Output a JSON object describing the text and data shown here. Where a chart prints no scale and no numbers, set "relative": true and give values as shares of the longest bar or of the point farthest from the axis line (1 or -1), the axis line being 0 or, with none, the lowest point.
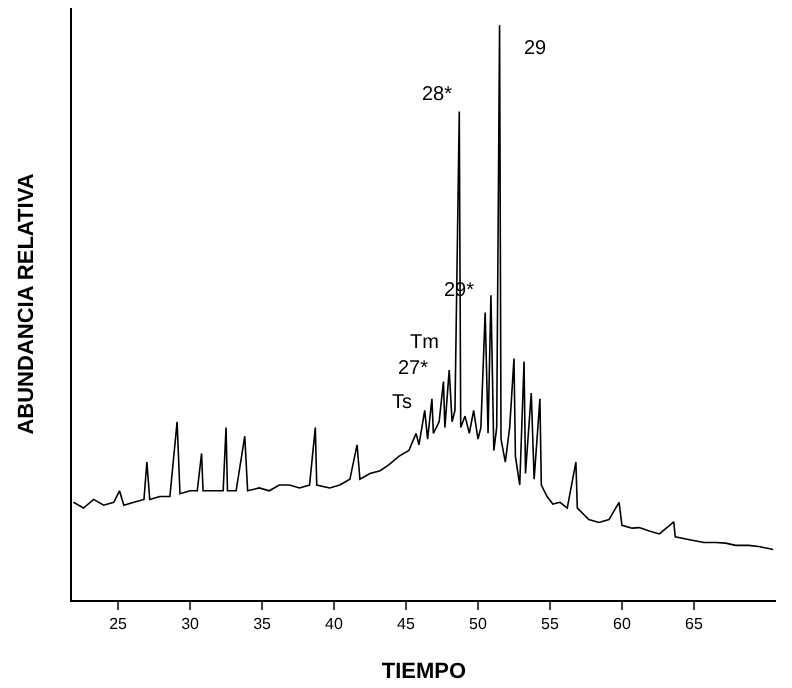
{
  "chart_data": {
    "type": "line",
    "xlabel": "TIEMPO",
    "ylabel": "ABUNDANCIA RELATIVA",
    "relative": true,
    "marker": "none",
    "line_style": "solid",
    "xlim": [
      21.8,
      70.7
    ],
    "xticks": [
      25,
      30,
      35,
      40,
      45,
      50,
      55,
      60,
      65
    ],
    "x": [
      21.9,
      22.6,
      23.3,
      24.0,
      24.7,
      25.1,
      25.4,
      26.1,
      26.8,
      27.0,
      27.2,
      27.9,
      28.6,
      29.1,
      29.3,
      30.0,
      30.5,
      30.8,
      30.9,
      31.6,
      32.3,
      32.5,
      32.6,
      33.2,
      33.8,
      34.0,
      34.8,
      35.5,
      36.2,
      36.9,
      37.6,
      38.3,
      38.7,
      38.8,
      39.7,
      40.4,
      41.1,
      41.6,
      41.8,
      42.5,
      43.2,
      43.8,
      44.5,
      45.2,
      45.7,
      45.9,
      46.3,
      46.5,
      46.8,
      46.9,
      47.3,
      47.6,
      47.7,
      48.0,
      48.2,
      48.4,
      48.7,
      48.8,
      49.1,
      49.4,
      49.7,
      50.0,
      50.2,
      50.5,
      50.7,
      50.9,
      51.1,
      51.3,
      51.5,
      51.6,
      51.9,
      52.2,
      52.5,
      52.6,
      52.9,
      53.2,
      53.3,
      53.7,
      53.9,
      54.3,
      54.4,
      54.8,
      55.2,
      55.7,
      56.2,
      56.8,
      56.9,
      57.7,
      58.4,
      59.1,
      59.8,
      60.0,
      60.7,
      61.2,
      61.9,
      62.6,
      63.6,
      63.7,
      64.7,
      65.7,
      66.5,
      67.2,
      67.9,
      68.8,
      69.5,
      70.1,
      70.5
    ],
    "series": [
      {
        "color": "#000000",
        "values": [
          0.17,
          0.16,
          0.175,
          0.165,
          0.17,
          0.19,
          0.165,
          0.17,
          0.175,
          0.24,
          0.175,
          0.18,
          0.18,
          0.31,
          0.185,
          0.19,
          0.19,
          0.255,
          0.19,
          0.19,
          0.19,
          0.3,
          0.19,
          0.19,
          0.285,
          0.19,
          0.195,
          0.19,
          0.2,
          0.2,
          0.195,
          0.2,
          0.3,
          0.2,
          0.195,
          0.2,
          0.21,
          0.27,
          0.21,
          0.22,
          0.225,
          0.235,
          0.25,
          0.26,
          0.29,
          0.27,
          0.33,
          0.28,
          0.35,
          0.29,
          0.31,
          0.38,
          0.3,
          0.4,
          0.31,
          0.33,
          0.85,
          0.3,
          0.32,
          0.29,
          0.33,
          0.28,
          0.3,
          0.5,
          0.29,
          0.53,
          0.26,
          0.3,
          1.0,
          0.28,
          0.24,
          0.3,
          0.42,
          0.25,
          0.2,
          0.415,
          0.22,
          0.36,
          0.21,
          0.35,
          0.2,
          0.18,
          0.167,
          0.17,
          0.16,
          0.24,
          0.16,
          0.14,
          0.135,
          0.14,
          0.17,
          0.13,
          0.125,
          0.126,
          0.12,
          0.115,
          0.136,
          0.11,
          0.105,
          0.1,
          0.1,
          0.099,
          0.095,
          0.095,
          0.093,
          0.09,
          0.088
        ]
      }
    ],
    "annotations": [
      {
        "text": "29",
        "x": 51.5,
        "y": 1.0
      },
      {
        "text": "28*",
        "x": 48.7,
        "y": 0.85
      },
      {
        "text": "29*",
        "x": 50.9,
        "y": 0.53
      },
      {
        "text": "Tm",
        "x": 48.0,
        "y": 0.4
      },
      {
        "text": "27*",
        "x": 47.6,
        "y": 0.38
      },
      {
        "text": "Ts",
        "x": 46.8,
        "y": 0.35
      }
    ]
  }
}
